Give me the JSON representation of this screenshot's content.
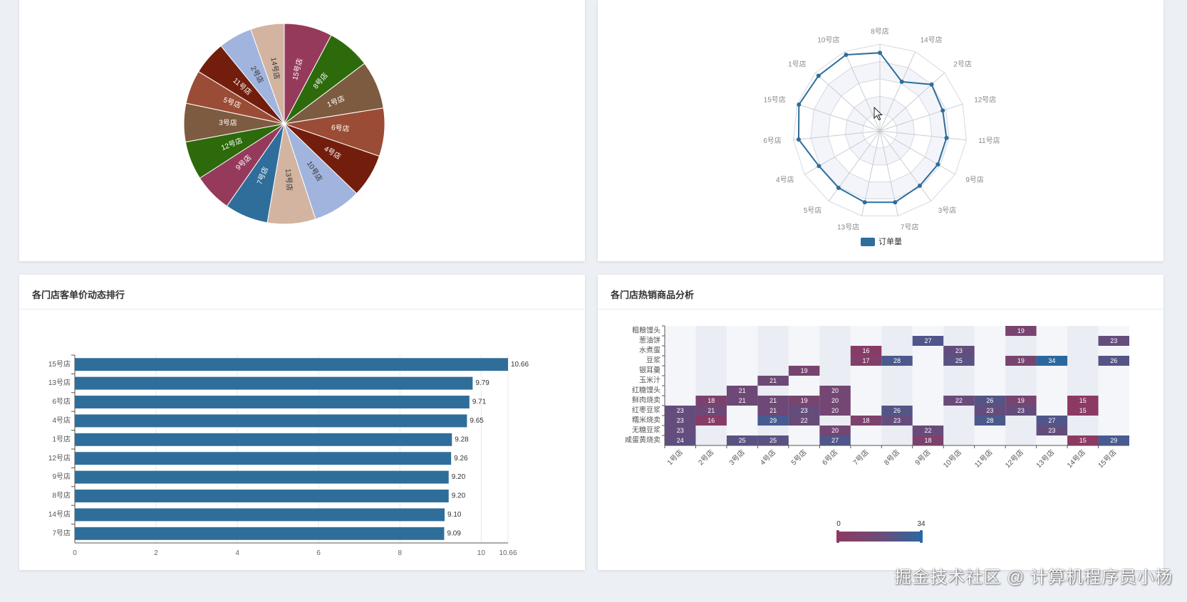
{
  "colors": {
    "primary": "#2f6e9a",
    "pie_palette": [
      "#963a5c",
      "#2d6a0b",
      "#7d5b40",
      "#9b4c36",
      "#731e0d",
      "#a0b4de",
      "#d2b4a0",
      "#2f6e9a"
    ],
    "heat_low": "#f4f6fa",
    "heat_mid": "#8c3a63",
    "heat_high": "#2d67a0"
  },
  "panels": {
    "bar_title": "各门店客单价动态排行",
    "heatmap_title": "各门店热销商品分析"
  },
  "watermark": "掘金技术社区 @ 计算机程序员小杨",
  "chart_data": [
    {
      "type": "pie",
      "slices": [
        {
          "label": "15号店",
          "value": 10.0
        },
        {
          "label": "8号店",
          "value": 9.0
        },
        {
          "label": "1号店",
          "value": 10.0
        },
        {
          "label": "6号店",
          "value": 10.0
        },
        {
          "label": "4号店",
          "value": 9.0
        },
        {
          "label": "10号店",
          "value": 10.0
        },
        {
          "label": "13号店",
          "value": 10.0
        },
        {
          "label": "7号店",
          "value": 9.0
        },
        {
          "label": "9号店",
          "value": 8.0
        },
        {
          "label": "12号店",
          "value": 8.0
        },
        {
          "label": "3号店",
          "value": 8.0
        },
        {
          "label": "5号店",
          "value": 7.0
        },
        {
          "label": "11号店",
          "value": 7.0
        },
        {
          "label": "2号店",
          "value": 7.0
        },
        {
          "label": "14号店",
          "value": 7.0
        }
      ]
    },
    {
      "type": "radar",
      "legend": "订单量",
      "legend_position": "bottom",
      "indicators": [
        "8号店",
        "14号店",
        "2号店",
        "12号店",
        "11号店",
        "9号店",
        "3号店",
        "7号店",
        "13号店",
        "5号店",
        "4号店",
        "6号店",
        "15号店",
        "1号店",
        "10号店"
      ],
      "max": 10,
      "values": [
        9.0,
        6.2,
        8.0,
        7.6,
        7.7,
        7.7,
        7.8,
        8.4,
        8.4,
        8.1,
        8.1,
        9.4,
        9.8,
        9.5,
        9.6
      ]
    },
    {
      "type": "bar",
      "orientation": "horizontal",
      "categories": [
        "15号店",
        "13号店",
        "6号店",
        "4号店",
        "1号店",
        "12号店",
        "9号店",
        "8号店",
        "14号店",
        "7号店"
      ],
      "values": [
        10.66,
        9.79,
        9.71,
        9.65,
        9.28,
        9.26,
        9.2,
        9.2,
        9.1,
        9.09
      ],
      "xticks": [
        "0",
        "2",
        "4",
        "6",
        "8",
        "10",
        "10.66"
      ],
      "xlim": [
        0,
        10.66
      ],
      "grid": true
    },
    {
      "type": "heatmap",
      "x": [
        "1号店",
        "2号店",
        "3号店",
        "4号店",
        "5号店",
        "6号店",
        "7号店",
        "8号店",
        "9号店",
        "10号店",
        "11号店",
        "12号店",
        "13号店",
        "14号店",
        "15号店"
      ],
      "y": [
        "粗粮馒头",
        "葱油饼",
        "水煮蛋",
        "豆浆",
        "银耳羹",
        "玉米汁",
        "红糖馒头",
        "鲜肉烧卖",
        "红枣豆浆",
        "糯米烧卖",
        "无糖豆浆",
        "咸蛋黄烧卖"
      ],
      "visual_min": 0,
      "visual_max": 34,
      "visual_min_label": "0",
      "visual_max_label": "34",
      "cells": [
        [
          0,
          11,
          19
        ],
        [
          1,
          8,
          27
        ],
        [
          1,
          14,
          23
        ],
        [
          2,
          6,
          16
        ],
        [
          2,
          9,
          23
        ],
        [
          3,
          6,
          17
        ],
        [
          3,
          7,
          28
        ],
        [
          3,
          9,
          25
        ],
        [
          3,
          11,
          19
        ],
        [
          3,
          12,
          34
        ],
        [
          3,
          14,
          26
        ],
        [
          4,
          4,
          19
        ],
        [
          5,
          3,
          21
        ],
        [
          6,
          2,
          21
        ],
        [
          6,
          5,
          20
        ],
        [
          7,
          1,
          18
        ],
        [
          7,
          2,
          21
        ],
        [
          7,
          3,
          21
        ],
        [
          7,
          4,
          19
        ],
        [
          7,
          5,
          20
        ],
        [
          7,
          9,
          22
        ],
        [
          7,
          10,
          26
        ],
        [
          7,
          11,
          19
        ],
        [
          7,
          13,
          15
        ],
        [
          8,
          0,
          23
        ],
        [
          8,
          1,
          21
        ],
        [
          8,
          3,
          21
        ],
        [
          8,
          4,
          23
        ],
        [
          8,
          5,
          20
        ],
        [
          8,
          7,
          26
        ],
        [
          8,
          10,
          23
        ],
        [
          8,
          11,
          23
        ],
        [
          8,
          13,
          15
        ],
        [
          9,
          0,
          23
        ],
        [
          9,
          1,
          16
        ],
        [
          9,
          3,
          29
        ],
        [
          9,
          4,
          22
        ],
        [
          9,
          6,
          18
        ],
        [
          9,
          7,
          23
        ],
        [
          9,
          10,
          28
        ],
        [
          9,
          12,
          27
        ],
        [
          10,
          0,
          23
        ],
        [
          10,
          5,
          20
        ],
        [
          10,
          8,
          22
        ],
        [
          10,
          12,
          23
        ],
        [
          11,
          0,
          24
        ],
        [
          11,
          2,
          25
        ],
        [
          11,
          3,
          25
        ],
        [
          11,
          5,
          27
        ],
        [
          11,
          8,
          18
        ],
        [
          11,
          13,
          15
        ],
        [
          11,
          14,
          29
        ]
      ]
    }
  ]
}
